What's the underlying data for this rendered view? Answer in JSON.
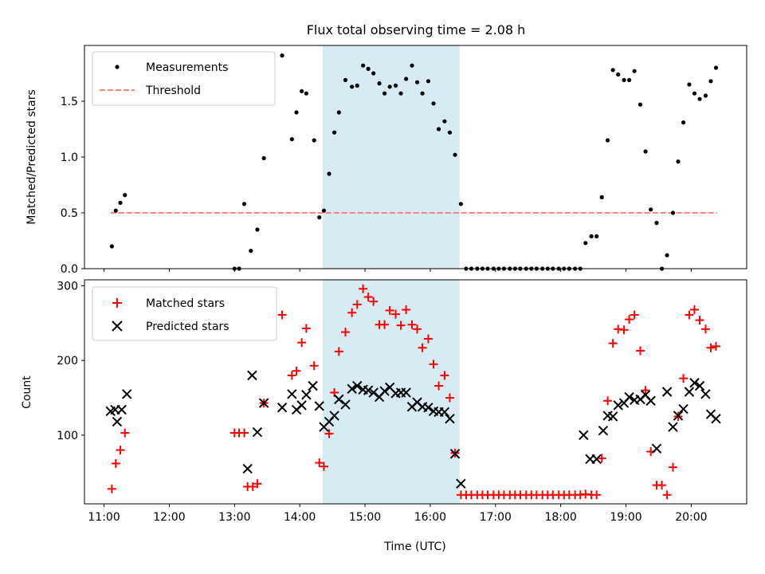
{
  "figure": {
    "title": "Flux total observing time = 2.08 h",
    "xlabel": "Time (UTC)"
  },
  "chart_data": [
    {
      "type": "scatter",
      "panel": "top",
      "ylabel": "Matched/Predicted stars",
      "xlim": [
        10.7,
        20.85
      ],
      "ylim": [
        0,
        2.0
      ],
      "yticks": [
        0.0,
        0.5,
        1.0,
        1.5
      ],
      "ytick_labels": [
        "0.0",
        "0.5",
        "1.0",
        "1.5"
      ],
      "shaded_span": {
        "x0": 14.35,
        "x1": 16.45,
        "color": "#add8e6"
      },
      "threshold": {
        "name": "Threshold",
        "y": 0.5,
        "x0": 11.1,
        "x1": 20.4,
        "color": "#ff8080",
        "style": "dashed"
      },
      "legend": {
        "placement": "top-left"
      },
      "series": [
        {
          "name": "Measurements",
          "marker": "dot",
          "color": "#000000",
          "points": [
            [
              11.12,
              0.2
            ],
            [
              11.18,
              0.52
            ],
            [
              11.25,
              0.59
            ],
            [
              11.32,
              0.66
            ],
            [
              13.0,
              0.0
            ],
            [
              13.07,
              0.0
            ],
            [
              13.15,
              0.58
            ],
            [
              13.25,
              0.16
            ],
            [
              13.35,
              0.35
            ],
            [
              13.45,
              0.99
            ],
            [
              13.73,
              1.91
            ],
            [
              13.88,
              1.16
            ],
            [
              13.95,
              1.4
            ],
            [
              14.03,
              1.59
            ],
            [
              14.1,
              1.57
            ],
            [
              14.22,
              1.15
            ],
            [
              14.3,
              0.46
            ],
            [
              14.37,
              0.52
            ],
            [
              14.45,
              0.85
            ],
            [
              14.53,
              1.22
            ],
            [
              14.6,
              1.4
            ],
            [
              14.7,
              1.69
            ],
            [
              14.8,
              1.63
            ],
            [
              14.88,
              1.64
            ],
            [
              14.97,
              1.82
            ],
            [
              15.05,
              1.79
            ],
            [
              15.13,
              1.75
            ],
            [
              15.22,
              1.66
            ],
            [
              15.3,
              1.57
            ],
            [
              15.38,
              1.63
            ],
            [
              15.47,
              1.64
            ],
            [
              15.55,
              1.57
            ],
            [
              15.63,
              1.7
            ],
            [
              15.72,
              1.82
            ],
            [
              15.8,
              1.67
            ],
            [
              15.88,
              1.57
            ],
            [
              15.97,
              1.68
            ],
            [
              16.05,
              1.48
            ],
            [
              16.13,
              1.25
            ],
            [
              16.22,
              1.32
            ],
            [
              16.3,
              1.22
            ],
            [
              16.38,
              1.02
            ],
            [
              16.47,
              0.58
            ],
            [
              16.55,
              0.0
            ],
            [
              16.63,
              0.0
            ],
            [
              16.72,
              0.0
            ],
            [
              16.8,
              0.0
            ],
            [
              16.88,
              0.0
            ],
            [
              16.97,
              0.0
            ],
            [
              17.05,
              0.0
            ],
            [
              17.13,
              0.0
            ],
            [
              17.22,
              0.0
            ],
            [
              17.3,
              0.0
            ],
            [
              17.38,
              0.0
            ],
            [
              17.47,
              0.0
            ],
            [
              17.55,
              0.0
            ],
            [
              17.63,
              0.0
            ],
            [
              17.72,
              0.0
            ],
            [
              17.8,
              0.0
            ],
            [
              17.88,
              0.0
            ],
            [
              17.97,
              0.0
            ],
            [
              18.05,
              0.0
            ],
            [
              18.13,
              0.0
            ],
            [
              18.22,
              0.0
            ],
            [
              18.3,
              0.0
            ],
            [
              18.38,
              0.23
            ],
            [
              18.47,
              0.29
            ],
            [
              18.55,
              0.29
            ],
            [
              18.63,
              0.64
            ],
            [
              18.72,
              1.15
            ],
            [
              18.8,
              1.78
            ],
            [
              18.88,
              1.74
            ],
            [
              18.97,
              1.69
            ],
            [
              19.05,
              1.69
            ],
            [
              19.13,
              1.77
            ],
            [
              19.22,
              1.47
            ],
            [
              19.3,
              1.05
            ],
            [
              19.38,
              0.53
            ],
            [
              19.47,
              0.41
            ],
            [
              19.55,
              0.0
            ],
            [
              19.63,
              0.12
            ],
            [
              19.72,
              0.5
            ],
            [
              19.8,
              0.96
            ],
            [
              19.88,
              1.31
            ],
            [
              19.97,
              1.65
            ],
            [
              20.05,
              1.57
            ],
            [
              20.13,
              1.52
            ],
            [
              20.22,
              1.55
            ],
            [
              20.3,
              1.68
            ],
            [
              20.38,
              1.8
            ]
          ]
        }
      ]
    },
    {
      "type": "scatter",
      "panel": "bottom",
      "ylabel": "Count",
      "xlim": [
        10.7,
        20.85
      ],
      "ylim": [
        8,
        308
      ],
      "yticks": [
        100,
        200,
        300
      ],
      "ytick_labels": [
        "100",
        "200",
        "300"
      ],
      "xticks": [
        11,
        12,
        13,
        14,
        15,
        16,
        17,
        18,
        19,
        20
      ],
      "xtick_labels": [
        "11:00",
        "12:00",
        "13:00",
        "14:00",
        "15:00",
        "16:00",
        "17:00",
        "18:00",
        "19:00",
        "20:00"
      ],
      "shaded_span": {
        "x0": 14.35,
        "x1": 16.45,
        "color": "#add8e6"
      },
      "legend": {
        "placement": "top-left"
      },
      "series": [
        {
          "name": "Matched stars",
          "marker": "plus",
          "color": "#ff0000",
          "points": [
            [
              11.12,
              28
            ],
            [
              11.18,
              62
            ],
            [
              11.25,
              80
            ],
            [
              11.32,
              103
            ],
            [
              13.0,
              103
            ],
            [
              13.07,
              103
            ],
            [
              13.15,
              103
            ],
            [
              13.2,
              31
            ],
            [
              13.28,
              31
            ],
            [
              13.35,
              35
            ],
            [
              13.45,
              143
            ],
            [
              13.73,
              261
            ],
            [
              13.88,
              180
            ],
            [
              13.95,
              186
            ],
            [
              14.03,
              224
            ],
            [
              14.1,
              243
            ],
            [
              14.22,
              193
            ],
            [
              14.3,
              63
            ],
            [
              14.37,
              58
            ],
            [
              14.45,
              102
            ],
            [
              14.53,
              157
            ],
            [
              14.6,
              212
            ],
            [
              14.7,
              238
            ],
            [
              14.8,
              264
            ],
            [
              14.88,
              275
            ],
            [
              14.97,
              296
            ],
            [
              15.05,
              285
            ],
            [
              15.13,
              279
            ],
            [
              15.22,
              248
            ],
            [
              15.3,
              248
            ],
            [
              15.38,
              267
            ],
            [
              15.47,
              262
            ],
            [
              15.55,
              247
            ],
            [
              15.63,
              268
            ],
            [
              15.72,
              248
            ],
            [
              15.8,
              242
            ],
            [
              15.88,
              217
            ],
            [
              15.97,
              229
            ],
            [
              16.05,
              195
            ],
            [
              16.13,
              166
            ],
            [
              16.22,
              180
            ],
            [
              16.3,
              150
            ],
            [
              16.38,
              76
            ],
            [
              16.47,
              20
            ],
            [
              16.55,
              20
            ],
            [
              16.63,
              20
            ],
            [
              16.72,
              20
            ],
            [
              16.8,
              20
            ],
            [
              16.88,
              20
            ],
            [
              16.97,
              20
            ],
            [
              17.05,
              20
            ],
            [
              17.13,
              20
            ],
            [
              17.22,
              20
            ],
            [
              17.3,
              20
            ],
            [
              17.38,
              20
            ],
            [
              17.47,
              20
            ],
            [
              17.55,
              20
            ],
            [
              17.63,
              20
            ],
            [
              17.72,
              20
            ],
            [
              17.8,
              20
            ],
            [
              17.88,
              20
            ],
            [
              17.97,
              20
            ],
            [
              18.05,
              20
            ],
            [
              18.13,
              20
            ],
            [
              18.22,
              20
            ],
            [
              18.3,
              20
            ],
            [
              18.38,
              21
            ],
            [
              18.47,
              20
            ],
            [
              18.55,
              20
            ],
            [
              18.63,
              69
            ],
            [
              18.72,
              146
            ],
            [
              18.8,
              223
            ],
            [
              18.88,
              242
            ],
            [
              18.97,
              241
            ],
            [
              19.05,
              255
            ],
            [
              19.13,
              261
            ],
            [
              19.22,
              213
            ],
            [
              19.3,
              160
            ],
            [
              19.38,
              78
            ],
            [
              19.47,
              33
            ],
            [
              19.55,
              33
            ],
            [
              19.63,
              20
            ],
            [
              19.72,
              57
            ],
            [
              19.8,
              125
            ],
            [
              19.88,
              176
            ],
            [
              19.97,
              261
            ],
            [
              20.05,
              268
            ],
            [
              20.13,
              254
            ],
            [
              20.22,
              242
            ],
            [
              20.3,
              217
            ],
            [
              20.38,
              219
            ]
          ]
        },
        {
          "name": "Predicted stars",
          "marker": "x",
          "color": "#000000",
          "points": [
            [
              11.1,
              132
            ],
            [
              11.17,
              134
            ],
            [
              11.2,
              118
            ],
            [
              11.27,
              134
            ],
            [
              11.35,
              155
            ],
            [
              13.2,
              55
            ],
            [
              13.27,
              180
            ],
            [
              13.35,
              104
            ],
            [
              13.45,
              143
            ],
            [
              13.73,
              137
            ],
            [
              13.88,
              155
            ],
            [
              13.95,
              134
            ],
            [
              14.03,
              140
            ],
            [
              14.1,
              154
            ],
            [
              14.2,
              166
            ],
            [
              14.3,
              139
            ],
            [
              14.37,
              111
            ],
            [
              14.45,
              118
            ],
            [
              14.53,
              126
            ],
            [
              14.6,
              148
            ],
            [
              14.7,
              141
            ],
            [
              14.8,
              162
            ],
            [
              14.88,
              166
            ],
            [
              14.97,
              161
            ],
            [
              15.05,
              160
            ],
            [
              15.13,
              157
            ],
            [
              15.22,
              151
            ],
            [
              15.3,
              159
            ],
            [
              15.38,
              164
            ],
            [
              15.47,
              156
            ],
            [
              15.55,
              157
            ],
            [
              15.63,
              157
            ],
            [
              15.72,
              138
            ],
            [
              15.8,
              144
            ],
            [
              15.88,
              138
            ],
            [
              15.97,
              137
            ],
            [
              16.05,
              132
            ],
            [
              16.13,
              131
            ],
            [
              16.22,
              131
            ],
            [
              16.3,
              122
            ],
            [
              16.38,
              75
            ],
            [
              16.47,
              35
            ],
            [
              18.35,
              100
            ],
            [
              18.45,
              68
            ],
            [
              18.55,
              68
            ],
            [
              18.65,
              106
            ],
            [
              18.72,
              126
            ],
            [
              18.8,
              125
            ],
            [
              18.88,
              140
            ],
            [
              18.97,
              143
            ],
            [
              19.05,
              151
            ],
            [
              19.13,
              147
            ],
            [
              19.22,
              148
            ],
            [
              19.3,
              154
            ],
            [
              19.38,
              146
            ],
            [
              19.47,
              82
            ],
            [
              19.63,
              158
            ],
            [
              19.72,
              111
            ],
            [
              19.8,
              126
            ],
            [
              19.88,
              135
            ],
            [
              19.97,
              158
            ],
            [
              20.05,
              170
            ],
            [
              20.13,
              166
            ],
            [
              20.22,
              155
            ],
            [
              20.3,
              128
            ],
            [
              20.38,
              122
            ]
          ]
        }
      ]
    }
  ]
}
